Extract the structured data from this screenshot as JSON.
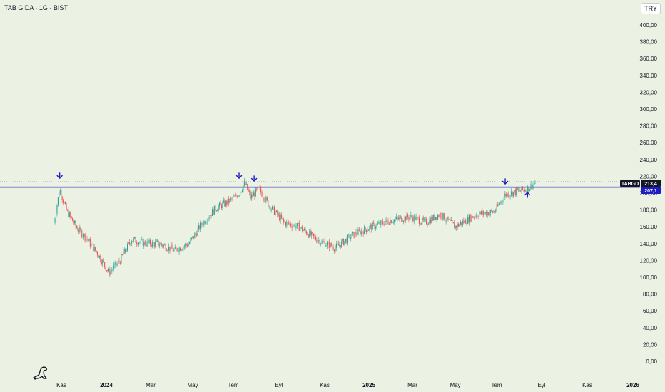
{
  "header": {
    "title": "TAB GIDA · 1G · BIST",
    "currency_label": "TRY"
  },
  "price_tags": {
    "symbol": "TABGD",
    "last_price": "213,4",
    "level_price": "207,1"
  },
  "colors": {
    "background": "#ebf2e3",
    "up_candle": "#26a69a",
    "down_candle": "#ef5350",
    "level_line": "#1c1cc4",
    "arrow": "#1c1cc4",
    "symbol_tag": "#131722"
  },
  "icons": [
    "arrow-down-icon",
    "arrow-up-icon",
    "dinosaur-logo-icon"
  ],
  "chart_data": {
    "type": "candlestick",
    "title": "TAB GIDA · 1G · BIST",
    "y_axis": {
      "ticks": [
        0,
        20,
        40,
        60,
        80,
        100,
        120,
        140,
        160,
        180,
        200,
        220,
        240,
        260,
        280,
        300,
        320,
        340,
        360,
        380,
        400
      ],
      "tick_labels": [
        "0,00",
        "20,00",
        "40,00",
        "60,00",
        "80,00",
        "100,00",
        "120,00",
        "140,00",
        "160,00",
        "180,00",
        "200,00",
        "220,00",
        "240,00",
        "260,00",
        "280,00",
        "300,00",
        "320,00",
        "340,00",
        "360,00",
        "380,00",
        "400,00"
      ],
      "range": [
        0,
        400
      ]
    },
    "x_axis": {
      "tick_labels": [
        "Kas",
        "2024",
        "Mar",
        "May",
        "Tem",
        "Eyl",
        "Kas",
        "2025",
        "Mar",
        "May",
        "Tem",
        "Eyl",
        "Kas",
        "2026"
      ],
      "bold_labels": [
        "2024",
        "2025",
        "2026"
      ]
    },
    "price_path": {
      "x": [
        "2023-10-20",
        "2023-10-28",
        "2023-11-06",
        "2023-11-20",
        "2023-12-05",
        "2023-12-20",
        "2024-01-05",
        "2024-01-20",
        "2024-02-05",
        "2024-02-25",
        "2024-03-15",
        "2024-04-05",
        "2024-04-25",
        "2024-05-15",
        "2024-06-01",
        "2024-06-20",
        "2024-07-04",
        "2024-07-12",
        "2024-07-20",
        "2024-08-01",
        "2024-08-15",
        "2024-09-05",
        "2024-09-25",
        "2024-10-20",
        "2024-11-15",
        "2024-12-10",
        "2025-01-05",
        "2025-02-01",
        "2025-03-01",
        "2025-03-20",
        "2025-04-10",
        "2025-05-01",
        "2025-06-01",
        "2025-06-25",
        "2025-07-10",
        "2025-07-25",
        "2025-08-10",
        "2025-08-22"
      ],
      "y": [
        165,
        205,
        180,
        160,
        145,
        128,
        105,
        120,
        145,
        140,
        140,
        132,
        140,
        165,
        182,
        190,
        200,
        212,
        195,
        205,
        185,
        165,
        160,
        145,
        135,
        150,
        160,
        168,
        172,
        165,
        175,
        160,
        175,
        178,
        198,
        202,
        205,
        213
      ]
    },
    "horizontal_levels": [
      {
        "value": 207.1,
        "label": "207,1",
        "style": "solid"
      },
      {
        "value": 213.4,
        "label": "213,4",
        "style": "dotted"
      }
    ],
    "annotations": [
      {
        "type": "arrow-down",
        "x": "2023-10-28"
      },
      {
        "type": "arrow-down",
        "x": "2024-07-04"
      },
      {
        "type": "arrow-down",
        "x": "2024-07-25"
      },
      {
        "type": "arrow-down",
        "x": "2025-07-10"
      },
      {
        "type": "arrow-up",
        "x": "2025-08-10"
      }
    ],
    "last_price": 213.4,
    "grid": false
  }
}
